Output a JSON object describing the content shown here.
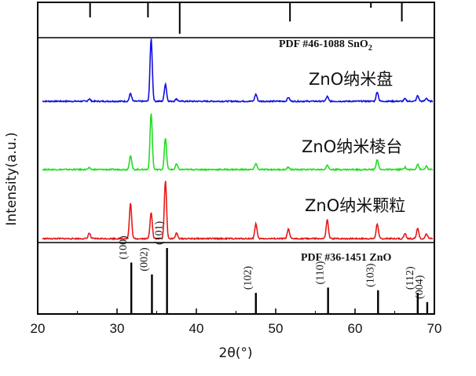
{
  "chart_data": {
    "type": "line",
    "xlabel": "2θ(°)",
    "ylabel": "Intensity(a.u.)",
    "xlim": [
      20,
      70
    ],
    "xticks": [
      20,
      30,
      40,
      50,
      60,
      70
    ],
    "tick_labels": [
      "20",
      "30",
      "40",
      "50",
      "60",
      "70"
    ],
    "grid": false,
    "series": [
      {
        "name": "ZnO纳米盘",
        "color": "#1010e0",
        "peaks": [
          [
            26.5,
            3
          ],
          [
            31.7,
            10
          ],
          [
            34.3,
            80
          ],
          [
            36.1,
            22
          ],
          [
            37.5,
            3
          ],
          [
            47.5,
            9
          ],
          [
            51.6,
            5
          ],
          [
            56.5,
            6
          ],
          [
            62.8,
            12
          ],
          [
            66.3,
            3
          ],
          [
            67.9,
            7
          ],
          [
            69.0,
            4
          ]
        ]
      },
      {
        "name": "ZnO纳米棱台",
        "color": "#22dd22",
        "peaks": [
          [
            26.5,
            2
          ],
          [
            31.7,
            18
          ],
          [
            34.3,
            72
          ],
          [
            36.1,
            40
          ],
          [
            37.5,
            7
          ],
          [
            47.5,
            8
          ],
          [
            51.6,
            3
          ],
          [
            56.5,
            6
          ],
          [
            62.8,
            13
          ],
          [
            66.3,
            3
          ],
          [
            67.9,
            7
          ],
          [
            69.0,
            4
          ]
        ]
      },
      {
        "name": "ZnO纳米颗粒",
        "color": "#e81818",
        "peaks": [
          [
            26.5,
            7
          ],
          [
            31.7,
            45
          ],
          [
            34.3,
            34
          ],
          [
            36.1,
            74
          ],
          [
            37.5,
            7
          ],
          [
            47.5,
            19
          ],
          [
            51.6,
            12
          ],
          [
            56.5,
            24
          ],
          [
            62.8,
            19
          ],
          [
            66.3,
            7
          ],
          [
            67.9,
            13
          ],
          [
            69.0,
            6
          ]
        ]
      }
    ],
    "reference_top": {
      "label": "PDF #46-1088 SnO",
      "label_subscript": "2",
      "lines": [
        [
          26.6,
          28
        ],
        [
          33.9,
          28
        ],
        [
          37.9,
          60
        ],
        [
          51.8,
          36
        ],
        [
          62.0,
          9
        ],
        [
          65.9,
          36
        ]
      ]
    },
    "reference_bottom": {
      "label": "PDF #36-1451 ZnO",
      "lines": [
        {
          "x": 31.8,
          "h": 78,
          "hkl": "(100)"
        },
        {
          "x": 34.4,
          "h": 60,
          "hkl": "(002)"
        },
        {
          "x": 36.3,
          "h": 100,
          "hkl": "(101)"
        },
        {
          "x": 47.5,
          "h": 32,
          "hkl": "(102)"
        },
        {
          "x": 56.6,
          "h": 40,
          "hkl": "(110)"
        },
        {
          "x": 62.9,
          "h": 36,
          "hkl": "(103)"
        },
        {
          "x": 67.9,
          "h": 32,
          "hkl": "(112)"
        },
        {
          "x": 69.1,
          "h": 18,
          "hkl": "(004)"
        }
      ]
    }
  }
}
